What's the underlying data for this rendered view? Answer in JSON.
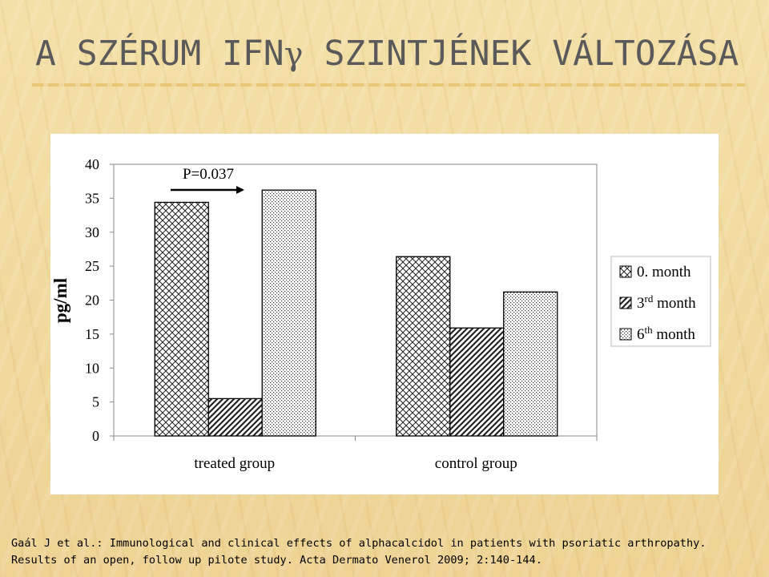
{
  "slide": {
    "title_prefix": "A SZÉRUM IFN",
    "title_gamma": "γ",
    "title_suffix": " SZINTJÉNEK VÁLTOZÁSA",
    "citation_line1": "Gaál J et al.: Immunological and clinical effects of alphacalcidol in patients with psoriatic arthropathy.",
    "citation_line2": "Results of an open, follow up pilote study. Acta Dermato Venerol 2009; 2:140-144."
  },
  "chart_data": {
    "type": "bar",
    "categories": [
      "treated group",
      "control group"
    ],
    "series": [
      {
        "name": "0. month",
        "name_base": "0. month",
        "name_sup": "",
        "name_tail": "",
        "pattern": "crosshatch",
        "values": [
          34.4,
          26.4
        ]
      },
      {
        "name": "3rd month",
        "name_base": "3",
        "name_sup": "rd",
        "name_tail": " month",
        "pattern": "diagonal",
        "values": [
          5.5,
          15.9
        ]
      },
      {
        "name": "6th month",
        "name_base": "6",
        "name_sup": "th",
        "name_tail": " month",
        "pattern": "dots",
        "values": [
          36.2,
          21.2
        ]
      }
    ],
    "ylabel": "pg/ml",
    "ylim": [
      0,
      40
    ],
    "yticks": [
      0,
      5,
      10,
      15,
      20,
      25,
      30,
      35,
      40
    ],
    "grid": false,
    "legend": "right",
    "annotation": {
      "text": "P=0.037",
      "arrow": "right"
    },
    "colors": {
      "bar_stroke": "#000000",
      "pattern": "#222222",
      "background": "#ffffff"
    }
  }
}
